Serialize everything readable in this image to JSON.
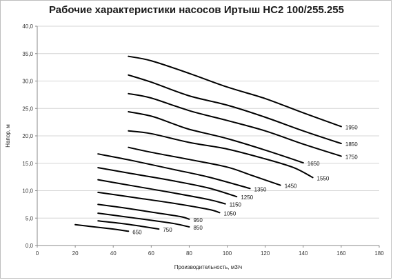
{
  "chart_data": {
    "type": "line",
    "title": "Рабочие характеристики насосов Иртыш НС2 100/255.255",
    "xlabel": "Производительность,  м3/ч",
    "ylabel": "Напор, м",
    "xlim": [
      0,
      180
    ],
    "ylim": [
      0,
      40
    ],
    "x_ticks": [
      0,
      20,
      40,
      60,
      80,
      100,
      120,
      140,
      160,
      180
    ],
    "y_ticks": [
      0,
      5,
      10,
      15,
      20,
      25,
      30,
      35,
      40
    ],
    "x_tick_labels": [
      "0",
      "20",
      "40",
      "60",
      "80",
      "100",
      "120",
      "140",
      "160",
      "180"
    ],
    "y_tick_labels": [
      "0,0",
      "5,0",
      "10,0",
      "15,0",
      "20,0",
      "25,0",
      "30,0",
      "35,0",
      "40,0"
    ],
    "grid": "horizontal",
    "series": [
      {
        "name": "650",
        "x": [
          20,
          30,
          40,
          48
        ],
        "y": [
          3.8,
          3.4,
          3.0,
          2.6
        ]
      },
      {
        "name": "750",
        "x": [
          32,
          45,
          55,
          64
        ],
        "y": [
          4.5,
          4.0,
          3.5,
          3.0
        ]
      },
      {
        "name": "850",
        "x": [
          32,
          45,
          60,
          72,
          80
        ],
        "y": [
          5.9,
          5.3,
          4.6,
          4.0,
          3.4
        ]
      },
      {
        "name": "950",
        "x": [
          32,
          45,
          60,
          75,
          80
        ],
        "y": [
          7.5,
          6.9,
          6.1,
          5.3,
          4.8
        ]
      },
      {
        "name": "1050",
        "x": [
          32,
          50,
          70,
          90,
          96
        ],
        "y": [
          9.7,
          8.8,
          7.8,
          6.6,
          6.0
        ]
      },
      {
        "name": "1150",
        "x": [
          32,
          50,
          70,
          90,
          99
        ],
        "y": [
          12.0,
          10.9,
          9.7,
          8.4,
          7.6
        ]
      },
      {
        "name": "1250",
        "x": [
          32,
          50,
          70,
          90,
          105
        ],
        "y": [
          14.2,
          13.1,
          11.9,
          10.5,
          8.9
        ]
      },
      {
        "name": "1350",
        "x": [
          32,
          50,
          70,
          90,
          112
        ],
        "y": [
          16.7,
          15.5,
          14.0,
          12.5,
          10.4
        ]
      },
      {
        "name": "1450",
        "x": [
          48,
          60,
          80,
          100,
          112,
          128
        ],
        "y": [
          17.9,
          17.0,
          15.7,
          14.3,
          12.9,
          11.0
        ]
      },
      {
        "name": "1550",
        "x": [
          48,
          60,
          80,
          100,
          120,
          135,
          145
        ],
        "y": [
          20.9,
          20.4,
          18.8,
          17.6,
          15.8,
          14.2,
          12.4
        ]
      },
      {
        "name": "1650",
        "x": [
          48,
          60,
          70,
          80,
          100,
          120,
          140
        ],
        "y": [
          24.4,
          23.6,
          22.4,
          21.2,
          19.5,
          17.4,
          15.1
        ]
      },
      {
        "name": "1750",
        "x": [
          48,
          60,
          80,
          100,
          120,
          140,
          160
        ],
        "y": [
          27.7,
          26.9,
          24.6,
          22.8,
          20.9,
          18.5,
          16.3
        ]
      },
      {
        "name": "1850",
        "x": [
          48,
          60,
          80,
          100,
          120,
          140,
          160
        ],
        "y": [
          31.1,
          29.8,
          27.3,
          25.6,
          23.4,
          20.9,
          18.6
        ]
      },
      {
        "name": "1950",
        "x": [
          48,
          60,
          80,
          100,
          120,
          140,
          160
        ],
        "y": [
          34.5,
          33.7,
          31.4,
          28.9,
          26.8,
          24.2,
          21.7
        ]
      }
    ]
  }
}
